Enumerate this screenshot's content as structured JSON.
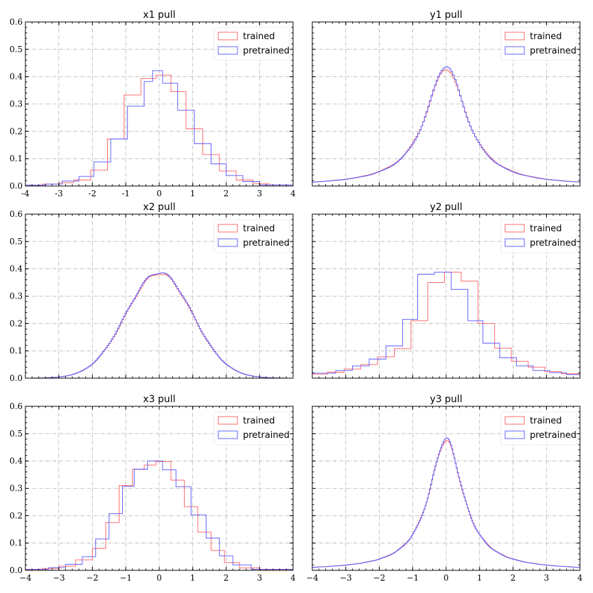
{
  "colors": {
    "trained": "#ff5a5a",
    "pretrained": "#5050ff"
  },
  "legend": {
    "trained": "trained",
    "pretrained": "pretrained"
  },
  "chart_data": [
    {
      "type": "histogram",
      "title": "x1 pull",
      "xlim": [
        -4,
        4
      ],
      "ylim": [
        0,
        0.6
      ],
      "xticks": [
        -4,
        -3,
        -2,
        -1,
        0,
        1,
        2,
        3,
        4
      ],
      "yticks": [
        "0.0",
        "0.1",
        "0.2",
        "0.3",
        "0.4",
        "0.5",
        "0.6"
      ],
      "series": [
        {
          "name": "trained",
          "binned": true,
          "edges": [
            -4,
            -3.5,
            -3,
            -2.55,
            -2.05,
            -1.55,
            -1.05,
            -0.55,
            -0.1,
            0.35,
            0.8,
            1.3,
            1.8,
            2.3,
            2.8,
            3.3,
            4
          ],
          "values": [
            0.003,
            0.007,
            0.012,
            0.022,
            0.058,
            0.172,
            0.333,
            0.393,
            0.406,
            0.345,
            0.209,
            0.115,
            0.055,
            0.022,
            0.008,
            0.004
          ]
        },
        {
          "name": "pretrained",
          "binned": true,
          "edges": [
            -4,
            -3.4,
            -2.9,
            -2.4,
            -1.95,
            -1.45,
            -0.95,
            -0.45,
            -0.2,
            0.1,
            0.55,
            1.05,
            1.55,
            2,
            2.5,
            3,
            4
          ],
          "values": [
            0.003,
            0.007,
            0.018,
            0.035,
            0.088,
            0.172,
            0.292,
            0.382,
            0.422,
            0.376,
            0.277,
            0.155,
            0.081,
            0.038,
            0.016,
            0.004
          ]
        }
      ]
    },
    {
      "type": "histogram",
      "title": "y1 pull",
      "xlim": [
        -4,
        4
      ],
      "ylim": [
        0,
        0.6
      ],
      "xticks": [],
      "yticks": [],
      "series": [
        {
          "name": "trained",
          "binned": false,
          "shape": "cauchy",
          "amplitude": 0.43,
          "gamma": 0.75,
          "bins": 160
        },
        {
          "name": "pretrained",
          "binned": false,
          "shape": "cauchy",
          "amplitude": 0.44,
          "gamma": 0.73,
          "bins": 160
        }
      ]
    },
    {
      "type": "histogram",
      "title": "x2 pull",
      "xlim": [
        -4,
        4
      ],
      "ylim": [
        0,
        0.6
      ],
      "xticks": [],
      "yticks": [
        "0.0",
        "0.1",
        "0.2",
        "0.3",
        "0.4",
        "0.5",
        "0.6"
      ],
      "series": [
        {
          "name": "trained",
          "binned": false,
          "shape": "gauss",
          "amplitude": 0.383,
          "sigma": 1.0,
          "bins": 180
        },
        {
          "name": "pretrained",
          "binned": false,
          "shape": "gauss",
          "amplitude": 0.387,
          "sigma": 1.0,
          "bins": 180
        }
      ]
    },
    {
      "type": "histogram",
      "title": "y2 pull",
      "xlim": [
        -4,
        4
      ],
      "ylim": [
        0,
        0.6
      ],
      "xticks": [],
      "yticks": [],
      "series": [
        {
          "name": "trained",
          "binned": true,
          "edges": [
            -4,
            -3.55,
            -3.05,
            -2.55,
            -2.05,
            -1.55,
            -1.05,
            -0.55,
            -0.05,
            0.45,
            0.95,
            1.45,
            1.95,
            2.45,
            2.95,
            3.45,
            4
          ],
          "values": [
            0.015,
            0.022,
            0.033,
            0.05,
            0.078,
            0.108,
            0.21,
            0.35,
            0.388,
            0.355,
            0.2,
            0.11,
            0.062,
            0.04,
            0.024,
            0.016
          ]
        },
        {
          "name": "pretrained",
          "binned": true,
          "edges": [
            -4,
            -3.3,
            -2.8,
            -2.3,
            -1.8,
            -1.3,
            -0.85,
            -0.35,
            0.15,
            0.65,
            1.1,
            1.6,
            2.1,
            2.6,
            3.1,
            3.6,
            4
          ],
          "values": [
            0.018,
            0.028,
            0.045,
            0.07,
            0.118,
            0.215,
            0.38,
            0.388,
            0.325,
            0.21,
            0.128,
            0.075,
            0.045,
            0.028,
            0.02,
            0.013
          ]
        }
      ]
    },
    {
      "type": "histogram",
      "title": "x3 pull",
      "xlim": [
        -4,
        4
      ],
      "ylim": [
        0,
        0.6
      ],
      "xticks": [
        "−4",
        "−3",
        "−2",
        "−1",
        "0",
        "1",
        "2",
        "3",
        "4"
      ],
      "yticks": [
        "0.0",
        "0.1",
        "0.2",
        "0.3",
        "0.4",
        "0.5",
        "0.6"
      ],
      "series": [
        {
          "name": "trained",
          "binned": true,
          "edges": [
            -4,
            -3.5,
            -3,
            -2.5,
            -2,
            -1.6,
            -1.2,
            -0.8,
            -0.45,
            -0.1,
            0.35,
            0.75,
            1.15,
            1.55,
            1.95,
            2.4,
            3,
            4
          ],
          "values": [
            0.003,
            0.007,
            0.015,
            0.038,
            0.08,
            0.175,
            0.31,
            0.37,
            0.385,
            0.398,
            0.33,
            0.233,
            0.14,
            0.073,
            0.028,
            0.009,
            0.003
          ]
        },
        {
          "name": "pretrained",
          "binned": true,
          "edges": [
            -4,
            -3.3,
            -2.8,
            -2.3,
            -1.9,
            -1.5,
            -1.1,
            -0.75,
            -0.35,
            0.1,
            0.5,
            0.95,
            1.4,
            1.8,
            2.2,
            2.75,
            4
          ],
          "values": [
            0.004,
            0.01,
            0.022,
            0.05,
            0.115,
            0.207,
            0.307,
            0.37,
            0.4,
            0.368,
            0.306,
            0.203,
            0.118,
            0.053,
            0.02,
            0.004
          ]
        }
      ]
    },
    {
      "type": "histogram",
      "title": "y3 pull",
      "xlim": [
        -4,
        4
      ],
      "ylim": [
        0,
        0.6
      ],
      "xticks": [
        "−4",
        "−3",
        "−2",
        "−1",
        "0",
        "1",
        "2",
        "3",
        "4"
      ],
      "yticks": [],
      "series": [
        {
          "name": "trained",
          "binned": false,
          "shape": "cauchy",
          "amplitude": 0.475,
          "gamma": 0.62,
          "bins": 240
        },
        {
          "name": "pretrained",
          "binned": false,
          "shape": "cauchy",
          "amplitude": 0.482,
          "gamma": 0.61,
          "bins": 240
        }
      ]
    }
  ]
}
